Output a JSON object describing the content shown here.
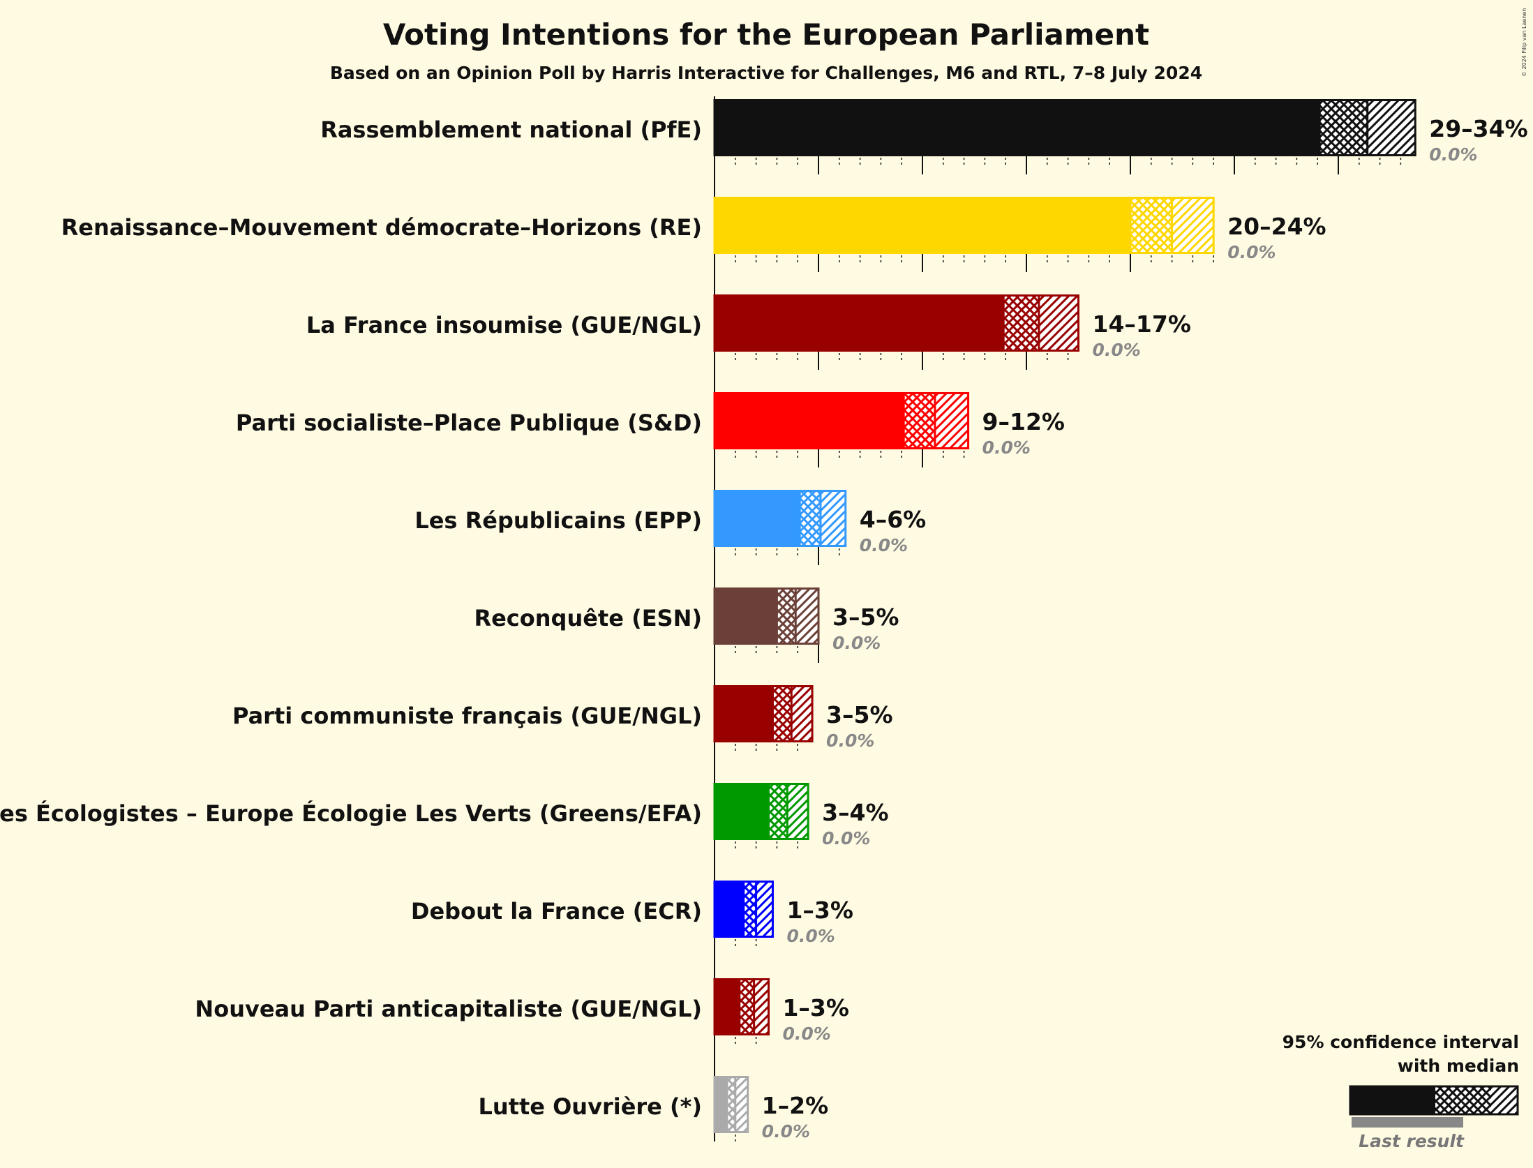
{
  "title": "Voting Intentions for the European Parliament",
  "subtitle": "Based on an Opinion Poll by Harris Interactive for Challenges, M6 and RTL, 7–8 July 2024",
  "copyright": "© 2024 Filip van Laenen",
  "legend": {
    "title_line1": "95% confidence interval",
    "title_line2": "with median",
    "last_result": "Last result",
    "color": "#111111"
  },
  "chart_data": {
    "type": "bar",
    "orientation": "horizontal",
    "unit": "%",
    "xlim": [
      0,
      34
    ],
    "parties": [
      {
        "name": "Rassemblement national (PfE)",
        "color": "#111111",
        "low": 29.1,
        "median": 31.4,
        "high": 33.7,
        "range_label": "29–34%",
        "last_label": "0.0%"
      },
      {
        "name": "Renaissance–Mouvement démocrate–Horizons (RE)",
        "color": "#ffd700",
        "low": 20.0,
        "median": 22.0,
        "high": 24.0,
        "range_label": "20–24%",
        "last_label": "0.0%"
      },
      {
        "name": "La France insoumise (GUE/NGL)",
        "color": "#990000",
        "low": 13.9,
        "median": 15.6,
        "high": 17.5,
        "range_label": "14–17%",
        "last_label": "0.0%"
      },
      {
        "name": "Parti socialiste–Place Publique (S&D)",
        "color": "#ff0000",
        "low": 9.1,
        "median": 10.6,
        "high": 12.2,
        "range_label": "9–12%",
        "last_label": "0.0%"
      },
      {
        "name": "Les Républicains (EPP)",
        "color": "#3399ff",
        "low": 4.1,
        "median": 5.1,
        "high": 6.3,
        "range_label": "4–6%",
        "last_label": "0.0%"
      },
      {
        "name": "Reconquête (ESN)",
        "color": "#6b4038",
        "low": 3.0,
        "median": 3.9,
        "high": 5.0,
        "range_label": "3–5%",
        "last_label": "0.0%"
      },
      {
        "name": "Parti communiste français (GUE/NGL)",
        "color": "#990000",
        "low": 2.8,
        "median": 3.7,
        "high": 4.7,
        "range_label": "3–5%",
        "last_label": "0.0%"
      },
      {
        "name": "Les Écologistes – Europe Écologie Les Verts (Greens/EFA)",
        "color": "#009900",
        "low": 2.6,
        "median": 3.5,
        "high": 4.5,
        "range_label": "3–4%",
        "last_label": "0.0%"
      },
      {
        "name": "Debout la France (ECR)",
        "color": "#0000ff",
        "low": 1.4,
        "median": 2.0,
        "high": 2.8,
        "range_label": "1–3%",
        "last_label": "0.0%"
      },
      {
        "name": "Nouveau Parti anticapitaliste (GUE/NGL)",
        "color": "#990000",
        "low": 1.2,
        "median": 1.9,
        "high": 2.6,
        "range_label": "1–3%",
        "last_label": "0.0%"
      },
      {
        "name": "Lutte Ouvrière (*)",
        "color": "#aaaaaa",
        "low": 0.6,
        "median": 1.0,
        "high": 1.6,
        "range_label": "1–2%",
        "last_label": "0.0%"
      }
    ]
  }
}
